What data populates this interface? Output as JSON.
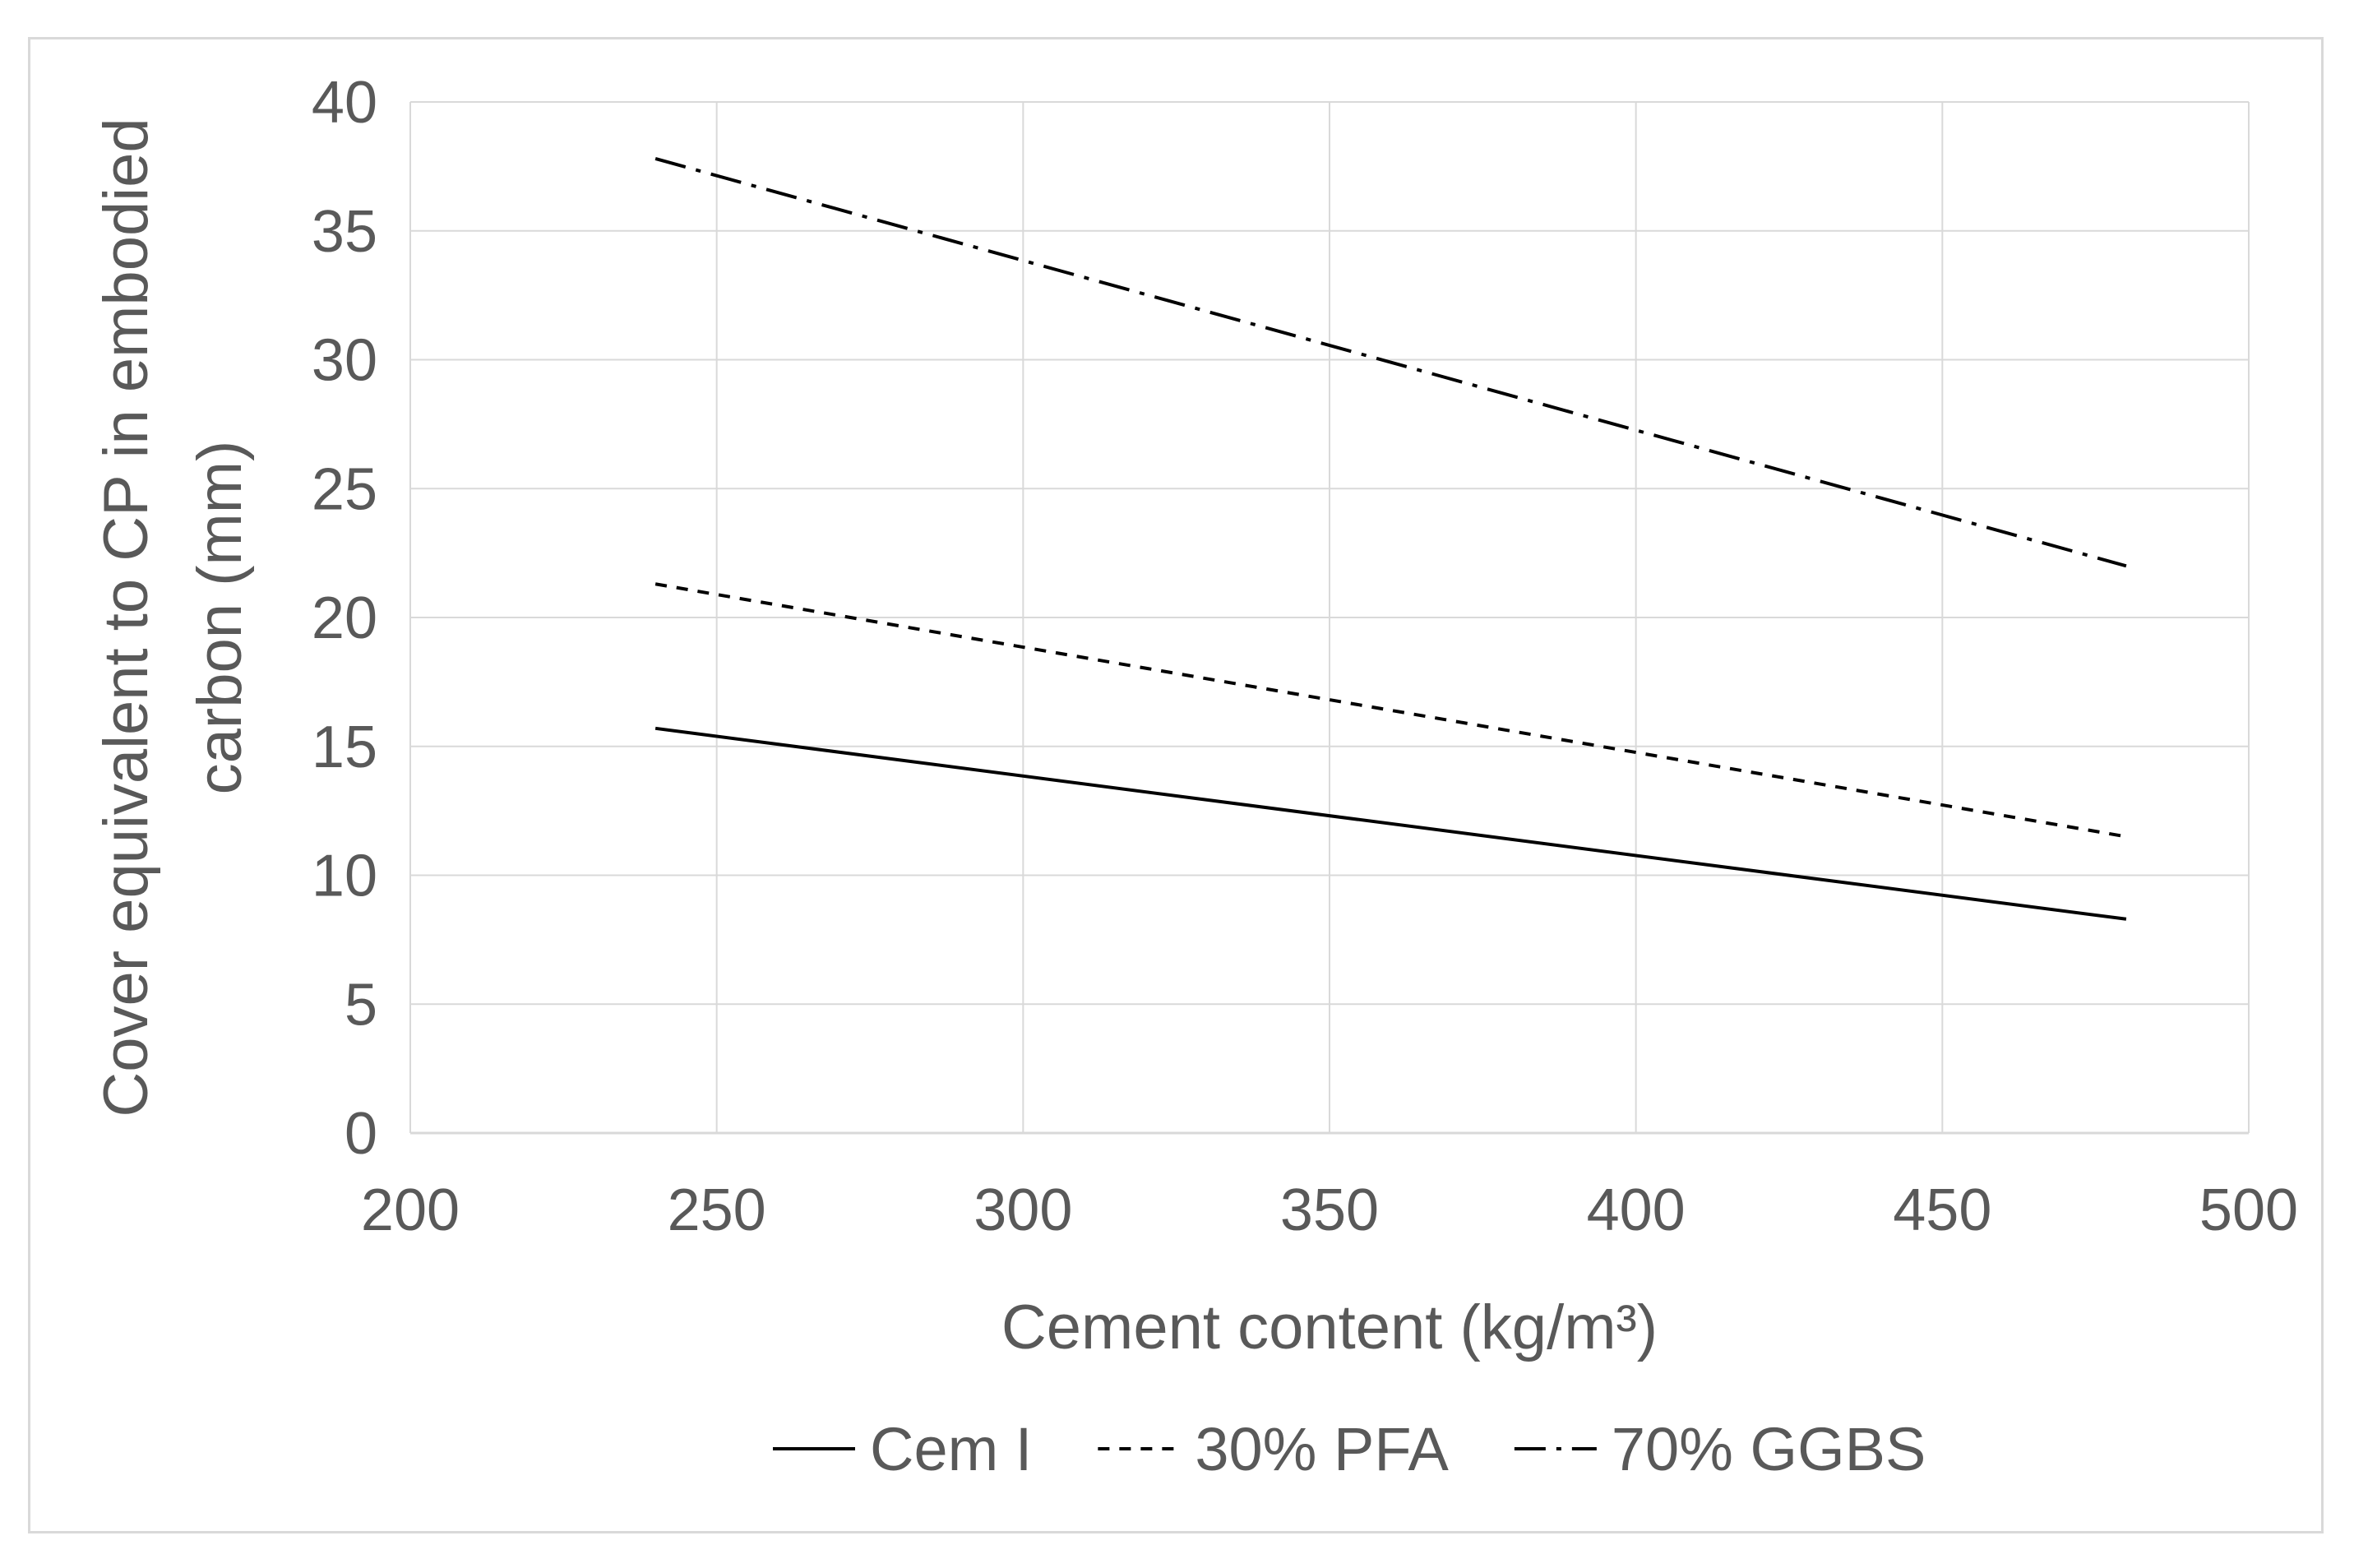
{
  "chart_data": {
    "type": "line",
    "title": "",
    "xlabel": "Cement content (kg/m³)",
    "ylabel_line1": "Cover equivalent to CP in embodied",
    "ylabel_line2": "carbon (mm)",
    "xlim": [
      200,
      500
    ],
    "ylim": [
      0,
      40
    ],
    "x_ticks": [
      "200",
      "250",
      "300",
      "350",
      "400",
      "450",
      "500"
    ],
    "y_ticks": [
      "0",
      "5",
      "10",
      "15",
      "20",
      "25",
      "30",
      "35",
      "40"
    ],
    "grid": true,
    "legend_position": "bottom",
    "series": [
      {
        "name": "Cem I",
        "style": "solid",
        "color": "#000000",
        "x": [
          240,
          480
        ],
        "y": [
          15.7,
          8.3
        ]
      },
      {
        "name": "30% PFA",
        "style": "dashed",
        "color": "#000000",
        "x": [
          240,
          480
        ],
        "y": [
          21.3,
          11.5
        ]
      },
      {
        "name": "70% GGBS",
        "style": "dash-dot",
        "color": "#000000",
        "x": [
          240,
          480
        ],
        "y": [
          37.8,
          22.0
        ]
      }
    ]
  }
}
